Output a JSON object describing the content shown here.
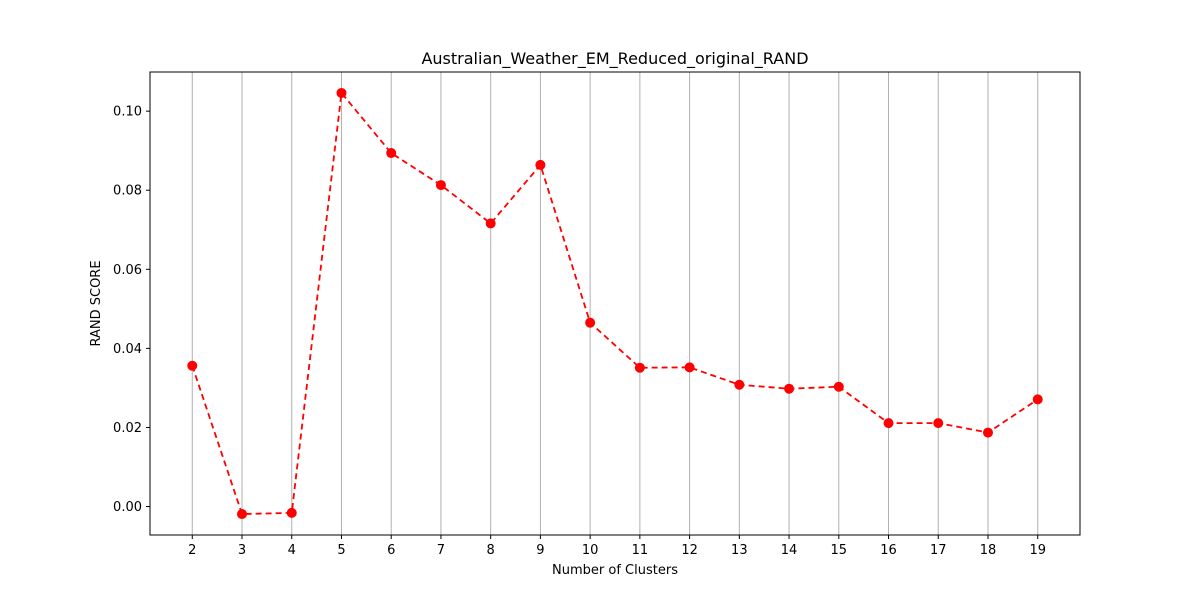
{
  "chart_data": {
    "type": "line",
    "title": "Australian_Weather_EM_Reduced_original_RAND",
    "xlabel": "Number of Clusters",
    "ylabel": "RAND SCORE",
    "x": [
      2,
      3,
      4,
      5,
      6,
      7,
      8,
      9,
      10,
      11,
      12,
      13,
      14,
      15,
      16,
      17,
      18,
      19
    ],
    "series": [
      {
        "values": [
          0.0356,
          -0.0019,
          -0.0016,
          0.1046,
          0.0894,
          0.0813,
          0.0716,
          0.0864,
          0.0465,
          0.0351,
          0.0352,
          0.0308,
          0.0298,
          0.0303,
          0.0211,
          0.0211,
          0.0187,
          0.0271
        ],
        "color": "#ff0000",
        "line_style": "dashed",
        "marker": "circle"
      }
    ],
    "xticks": [
      "2",
      "3",
      "4",
      "5",
      "6",
      "7",
      "8",
      "9",
      "10",
      "11",
      "12",
      "13",
      "14",
      "15",
      "16",
      "17",
      "18",
      "19"
    ],
    "yticks": [
      "0.00",
      "0.02",
      "0.04",
      "0.06",
      "0.08",
      "0.10"
    ],
    "ytick_values": [
      0.0,
      0.02,
      0.04,
      0.06,
      0.08,
      0.1
    ],
    "xlim": [
      1.15,
      19.85
    ],
    "ylim": [
      -0.0072,
      0.1099
    ],
    "grid": "vertical",
    "grid_color": "#b0b0b0"
  }
}
